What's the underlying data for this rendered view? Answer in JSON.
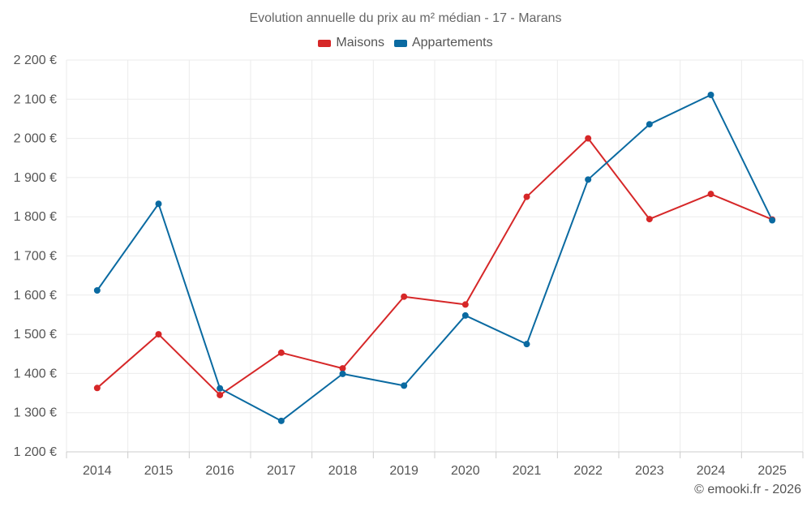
{
  "chart_data": {
    "type": "line",
    "title": "Evolution annuelle du prix au m² médian - 17 - Marans",
    "categories": [
      "2014",
      "2015",
      "2016",
      "2017",
      "2018",
      "2019",
      "2020",
      "2021",
      "2022",
      "2023",
      "2024",
      "2025"
    ],
    "series": [
      {
        "name": "Maisons",
        "color": "#d62728",
        "values": [
          1363,
          1500,
          1345,
          1453,
          1413,
          1596,
          1576,
          1851,
          2000,
          1794,
          1858,
          1793
        ]
      },
      {
        "name": "Appartements",
        "color": "#0a6aa1",
        "values": [
          1612,
          1833,
          1362,
          1279,
          1399,
          1369,
          1548,
          1475,
          1895,
          2036,
          2111,
          1791
        ]
      }
    ],
    "ylim": [
      1200,
      2200
    ],
    "yticks": [
      1200,
      1300,
      1400,
      1500,
      1600,
      1700,
      1800,
      1900,
      2000,
      2100,
      2200
    ],
    "ytick_labels": [
      "1 200 €",
      "1 300 €",
      "1 400 €",
      "1 500 €",
      "1 600 €",
      "1 700 €",
      "1 800 €",
      "1 900 €",
      "2 000 €",
      "2 100 €",
      "2 200 €"
    ],
    "xlabel": "",
    "ylabel": "",
    "legend": "top-center",
    "grid": true
  },
  "credit": "© emooki.fr - 2026"
}
